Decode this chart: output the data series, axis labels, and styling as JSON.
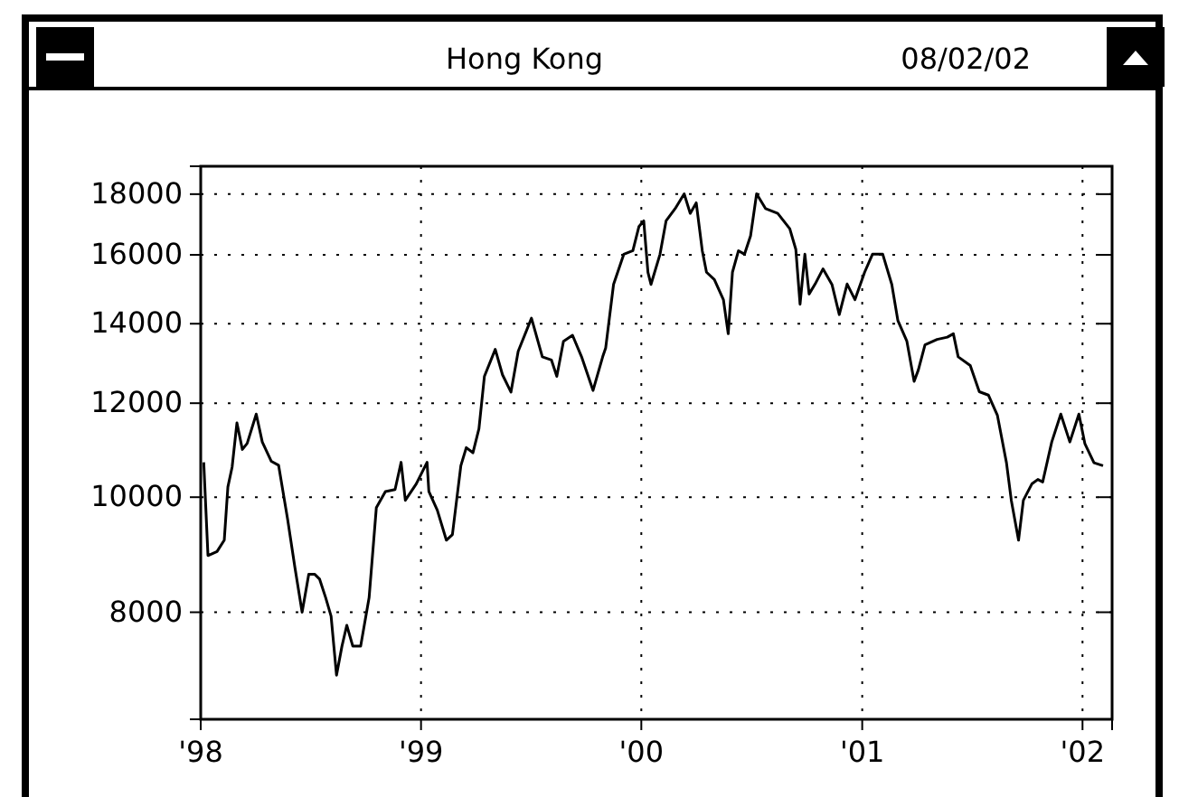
{
  "chart_data": {
    "type": "line",
    "title": "Hong Kong",
    "annotations": [
      "08/02/02"
    ],
    "x": [
      "1998-01-06",
      "1998-01-13",
      "1998-01-28",
      "1998-02-09",
      "1998-02-15",
      "1998-02-22",
      "1998-03-02",
      "1998-03-11",
      "1998-03-19",
      "1998-04-03",
      "1998-04-13",
      "1998-04-28",
      "1998-05-10",
      "1998-05-25",
      "1998-06-06",
      "1998-06-18",
      "1998-06-29",
      "1998-07-09",
      "1998-07-17",
      "1998-07-27",
      "1998-08-05",
      "1998-08-14",
      "1998-08-23",
      "1998-08-31",
      "1998-09-10",
      "1998-09-23",
      "1998-10-07",
      "1998-10-19",
      "1998-11-03",
      "1998-11-19",
      "1998-11-29",
      "1998-12-06",
      "1998-12-24",
      "1999-01-11",
      "1999-01-14",
      "1999-01-28",
      "1999-02-12",
      "1999-02-22",
      "1999-03-08",
      "1999-03-17",
      "1999-03-28",
      "1999-04-07",
      "1999-04-16",
      "1999-05-04",
      "1999-05-16",
      "1999-05-30",
      "1999-06-11",
      "1999-07-03",
      "1999-07-21",
      "1999-08-05",
      "1999-08-14",
      "1999-08-25",
      "1999-09-09",
      "1999-09-24",
      "1999-10-13",
      "1999-10-29",
      "1999-11-03",
      "1999-11-16",
      "1999-12-03",
      "1999-12-18",
      "1999-12-28",
      "2000-01-05",
      "2000-01-12",
      "2000-01-17",
      "2000-02-01",
      "2000-02-11",
      "2000-02-26",
      "2000-03-12",
      "2000-03-22",
      "2000-04-01",
      "2000-04-11",
      "2000-04-18",
      "2000-05-01",
      "2000-05-16",
      "2000-05-24",
      "2000-05-31",
      "2000-06-10",
      "2000-06-20",
      "2000-06-30",
      "2000-07-10",
      "2000-07-25",
      "2000-08-14",
      "2000-09-03",
      "2000-09-13",
      "2000-09-20",
      "2000-09-28",
      "2000-10-05",
      "2000-10-15",
      "2000-10-28",
      "2000-11-12",
      "2000-11-24",
      "2000-12-07",
      "2000-12-20",
      "2001-01-05",
      "2001-01-18",
      "2001-02-04",
      "2001-02-19",
      "2001-03-01",
      "2001-03-16",
      "2001-03-28",
      "2001-04-04",
      "2001-04-15",
      "2001-05-05",
      "2001-05-22",
      "2001-06-01",
      "2001-06-09",
      "2001-06-29",
      "2001-07-14",
      "2001-07-29",
      "2001-08-13",
      "2001-08-28",
      "2001-09-05",
      "2001-09-17",
      "2001-09-25",
      "2001-10-09",
      "2001-10-19",
      "2001-10-27",
      "2001-11-11",
      "2001-11-26",
      "2001-12-11",
      "2001-12-26",
      "2002-01-05",
      "2002-01-20",
      "2002-02-04"
    ],
    "series": [
      {
        "color": "#000000",
        "values": [
          10700,
          8930,
          9000,
          9200,
          10200,
          10600,
          11550,
          10970,
          11100,
          11750,
          11130,
          10720,
          10640,
          9580,
          8730,
          8000,
          8610,
          8610,
          8530,
          8230,
          7940,
          7080,
          7490,
          7800,
          7490,
          7490,
          8230,
          9800,
          10110,
          10150,
          10700,
          9940,
          10260,
          10700,
          10110,
          9750,
          9200,
          9300,
          10630,
          11010,
          10900,
          11420,
          12640,
          13320,
          12680,
          12260,
          13270,
          14150,
          13130,
          13050,
          12640,
          13530,
          13690,
          13130,
          12300,
          13130,
          13360,
          15110,
          16020,
          16130,
          16900,
          17090,
          15470,
          15110,
          16020,
          17090,
          17500,
          18010,
          17340,
          17700,
          16130,
          15470,
          15250,
          14670,
          13730,
          15470,
          16130,
          16020,
          16600,
          18010,
          17500,
          17340,
          16830,
          16170,
          14540,
          16020,
          14830,
          15120,
          15570,
          15100,
          14250,
          15120,
          14670,
          15470,
          16020,
          16020,
          15110,
          14090,
          13530,
          12520,
          12800,
          13440,
          13580,
          13640,
          13730,
          13130,
          12910,
          12270,
          12190,
          11720,
          10690,
          9940,
          9200,
          9940,
          10260,
          10350,
          10300,
          11130,
          11750,
          11130,
          11750,
          11090,
          10690,
          10630
        ]
      }
    ],
    "xlim": [
      "1998-01-01",
      "2002-02-19"
    ],
    "xticks": [
      {
        "value": "1998-01-01",
        "label": "'98"
      },
      {
        "value": "1999-01-01",
        "label": "'99"
      },
      {
        "value": "2000-01-01",
        "label": "'00"
      },
      {
        "value": "2001-01-01",
        "label": "'01"
      },
      {
        "value": "2002-01-01",
        "label": "'02"
      }
    ],
    "ylim": [
      6500,
      19000
    ],
    "yticks": [
      8000,
      10000,
      12000,
      14000,
      16000,
      18000
    ],
    "log": "y",
    "grid": true,
    "marker": "none",
    "line_style": "solid"
  }
}
